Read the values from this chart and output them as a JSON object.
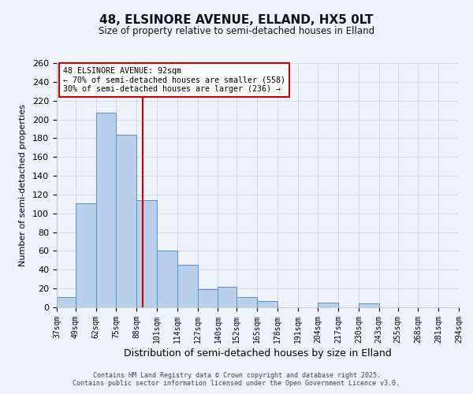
{
  "title": "48, ELSINORE AVENUE, ELLAND, HX5 0LT",
  "subtitle": "Size of property relative to semi-detached houses in Elland",
  "xlabel": "Distribution of semi-detached houses by size in Elland",
  "ylabel": "Number of semi-detached properties",
  "bar_edges": [
    37,
    49,
    62,
    75,
    88,
    101,
    114,
    127,
    140,
    152,
    165,
    178,
    191,
    204,
    217,
    230,
    243,
    255,
    268,
    281,
    294
  ],
  "bar_heights": [
    11,
    111,
    207,
    184,
    114,
    60,
    45,
    19,
    22,
    11,
    7,
    0,
    0,
    5,
    0,
    4,
    0,
    0,
    0,
    0
  ],
  "tick_labels": [
    "37sqm",
    "49sqm",
    "62sqm",
    "75sqm",
    "88sqm",
    "101sqm",
    "114sqm",
    "127sqm",
    "140sqm",
    "152sqm",
    "165sqm",
    "178sqm",
    "191sqm",
    "204sqm",
    "217sqm",
    "230sqm",
    "243sqm",
    "255sqm",
    "268sqm",
    "281sqm",
    "294sqm"
  ],
  "bar_color": "#b8d0eb",
  "bar_edge_color": "#5a8fc0",
  "vline_x": 92,
  "vline_color": "#cc0000",
  "annotation_title": "48 ELSINORE AVENUE: 92sqm",
  "annotation_line1": "← 70% of semi-detached houses are smaller (558)",
  "annotation_line2": "30% of semi-detached houses are larger (236) →",
  "annotation_box_color": "#ffffff",
  "annotation_box_edge": "#cc0000",
  "ylim": [
    0,
    260
  ],
  "yticks": [
    0,
    20,
    40,
    60,
    80,
    100,
    120,
    140,
    160,
    180,
    200,
    220,
    240,
    260
  ],
  "bg_color": "#eef2fa",
  "grid_color": "#c8d4ec",
  "footer1": "Contains HM Land Registry data © Crown copyright and database right 2025.",
  "footer2": "Contains public sector information licensed under the Open Government Licence v3.0."
}
